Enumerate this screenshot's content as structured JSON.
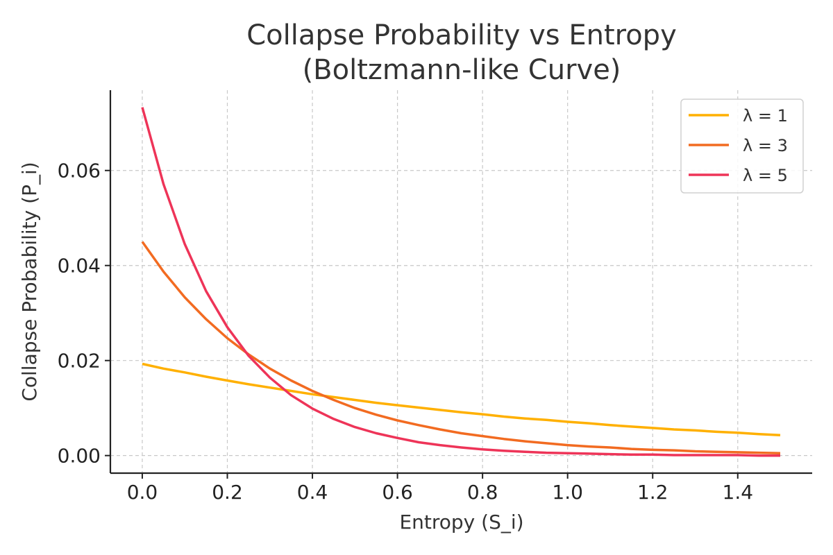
{
  "chart_data": {
    "type": "line",
    "title_line1": "Collapse Probability vs Entropy",
    "title_line2": "(Boltzmann-like Curve)",
    "xlabel": "Entropy (S_i)",
    "ylabel": "Collapse Probability (P_i)",
    "xlim": [
      -0.075,
      1.575
    ],
    "ylim": [
      -0.0037,
      0.0769
    ],
    "xticks": [
      0.0,
      0.2,
      0.4,
      0.6,
      0.8,
      1.0,
      1.2,
      1.4
    ],
    "xtick_labels": [
      "0.0",
      "0.2",
      "0.4",
      "0.6",
      "0.8",
      "1.0",
      "1.2",
      "1.4"
    ],
    "yticks": [
      0.0,
      0.02,
      0.04,
      0.06
    ],
    "ytick_labels": [
      "0.00",
      "0.02",
      "0.04",
      "0.06"
    ],
    "grid": true,
    "legend_position": "top-right",
    "x": [
      0.0,
      0.05,
      0.1,
      0.15,
      0.2,
      0.25,
      0.3,
      0.35,
      0.4,
      0.45,
      0.5,
      0.55,
      0.6,
      0.65,
      0.7,
      0.75,
      0.8,
      0.85,
      0.9,
      0.95,
      1.0,
      1.05,
      1.1,
      1.15,
      1.2,
      1.25,
      1.3,
      1.35,
      1.4,
      1.45,
      1.5
    ],
    "series": [
      {
        "name": "λ = 1",
        "color": "#ffb000",
        "values": [
          0.0193,
          0.0183,
          0.0175,
          0.0166,
          0.0158,
          0.015,
          0.0143,
          0.0136,
          0.0129,
          0.0123,
          0.0117,
          0.0111,
          0.0106,
          0.0101,
          0.0096,
          0.0091,
          0.0087,
          0.0082,
          0.0078,
          0.0075,
          0.0071,
          0.0068,
          0.0064,
          0.0061,
          0.0058,
          0.0055,
          0.0053,
          0.005,
          0.0048,
          0.0045,
          0.0043
        ]
      },
      {
        "name": "λ = 3",
        "color": "#f26b21",
        "values": [
          0.045,
          0.0387,
          0.0333,
          0.0287,
          0.0247,
          0.0213,
          0.0183,
          0.0158,
          0.0136,
          0.0117,
          0.01,
          0.0086,
          0.0074,
          0.0064,
          0.0055,
          0.0047,
          0.0041,
          0.0035,
          0.003,
          0.0026,
          0.0022,
          0.0019,
          0.0017,
          0.0014,
          0.0012,
          0.0011,
          0.0009,
          0.0008,
          0.0007,
          0.0006,
          0.0005
        ]
      },
      {
        "name": "λ = 5",
        "color": "#ee3458",
        "values": [
          0.0733,
          0.0571,
          0.0445,
          0.0346,
          0.027,
          0.021,
          0.0164,
          0.0127,
          0.0099,
          0.0077,
          0.006,
          0.0047,
          0.0037,
          0.0028,
          0.0022,
          0.0017,
          0.0013,
          0.001,
          0.0008,
          0.0006,
          0.0005,
          0.0004,
          0.0003,
          0.0002,
          0.0002,
          0.0001,
          0.0001,
          0.0001,
          0.0001,
          0.0,
          0.0
        ]
      }
    ]
  }
}
